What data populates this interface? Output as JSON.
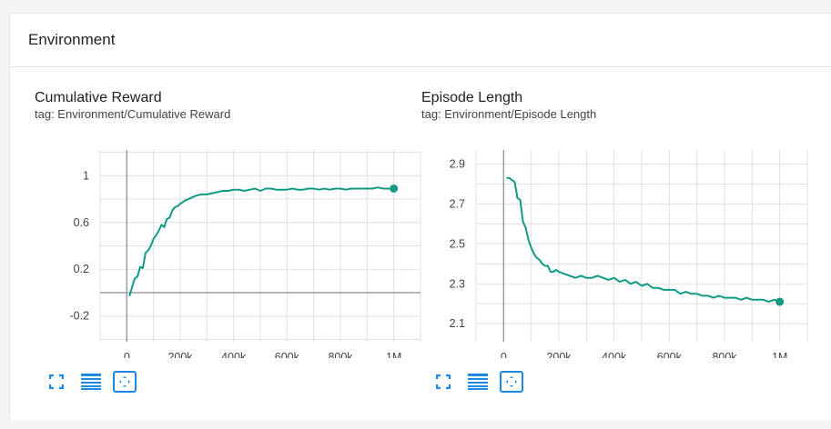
{
  "section": {
    "title": "Environment"
  },
  "colors": {
    "series": "#129a84",
    "grid": "#e0e0e0",
    "axis": "#9e9e9e",
    "icon": "#1e88e5"
  },
  "icons": {
    "fullscreen": "fullscreen-icon",
    "data_table": "data-table-icon",
    "fit_domain": "fit-domain-icon"
  },
  "charts": [
    {
      "title": "Cumulative Reward",
      "tag": "tag: Environment/Cumulative Reward"
    },
    {
      "title": "Episode Length",
      "tag": "tag: Environment/Episode Length"
    }
  ],
  "chart_data": [
    {
      "type": "line",
      "title": "Cumulative Reward",
      "subtitle": "tag: Environment/Cumulative Reward",
      "xlim": [
        -100000,
        1100000
      ],
      "ylim": [
        -0.42,
        1.22
      ],
      "xticks": [
        0,
        200000,
        400000,
        600000,
        800000,
        1000000
      ],
      "xtick_labels": [
        "0",
        "200k",
        "400k",
        "600k",
        "800k",
        "1M"
      ],
      "yticks": [
        -0.2,
        0.2,
        0.6,
        1
      ],
      "ytick_labels": [
        "-0.2",
        "0.2",
        "0.6",
        "1"
      ],
      "grid": true,
      "series": [
        {
          "x": [
            10000,
            20000,
            30000,
            40000,
            50000,
            60000,
            70000,
            80000,
            90000,
            100000,
            110000,
            120000,
            130000,
            140000,
            150000,
            160000,
            170000,
            180000,
            190000,
            200000,
            220000,
            240000,
            260000,
            280000,
            300000,
            320000,
            340000,
            360000,
            380000,
            400000,
            420000,
            440000,
            460000,
            480000,
            500000,
            520000,
            540000,
            560000,
            580000,
            600000,
            620000,
            640000,
            660000,
            680000,
            700000,
            720000,
            740000,
            760000,
            780000,
            800000,
            820000,
            840000,
            860000,
            880000,
            900000,
            920000,
            940000,
            960000,
            980000,
            1000000
          ],
          "y": [
            -0.03,
            0.05,
            0.12,
            0.14,
            0.22,
            0.21,
            0.34,
            0.36,
            0.4,
            0.46,
            0.49,
            0.53,
            0.58,
            0.56,
            0.63,
            0.64,
            0.7,
            0.73,
            0.74,
            0.76,
            0.79,
            0.81,
            0.83,
            0.84,
            0.84,
            0.85,
            0.86,
            0.87,
            0.87,
            0.88,
            0.88,
            0.87,
            0.88,
            0.89,
            0.87,
            0.89,
            0.89,
            0.88,
            0.88,
            0.88,
            0.89,
            0.88,
            0.88,
            0.89,
            0.89,
            0.88,
            0.89,
            0.88,
            0.89,
            0.89,
            0.88,
            0.89,
            0.89,
            0.89,
            0.89,
            0.89,
            0.9,
            0.89,
            0.89,
            0.89
          ]
        }
      ]
    },
    {
      "type": "line",
      "title": "Episode Length",
      "subtitle": "tag: Environment/Episode Length",
      "xlim": [
        -100000,
        1100000
      ],
      "ylim": [
        2.01,
        2.97
      ],
      "xticks": [
        0,
        200000,
        400000,
        600000,
        800000,
        1000000
      ],
      "xtick_labels": [
        "0",
        "200k",
        "400k",
        "600k",
        "800k",
        "1M"
      ],
      "yticks": [
        2.1,
        2.3,
        2.5,
        2.7,
        2.9
      ],
      "ytick_labels": [
        "2.1",
        "2.3",
        "2.5",
        "2.7",
        "2.9"
      ],
      "grid": true,
      "series": [
        {
          "x": [
            10000,
            20000,
            30000,
            40000,
            50000,
            60000,
            70000,
            80000,
            90000,
            100000,
            110000,
            120000,
            130000,
            140000,
            150000,
            160000,
            170000,
            180000,
            190000,
            200000,
            220000,
            240000,
            260000,
            280000,
            300000,
            320000,
            340000,
            360000,
            380000,
            400000,
            420000,
            440000,
            460000,
            480000,
            500000,
            520000,
            540000,
            560000,
            580000,
            600000,
            620000,
            640000,
            660000,
            680000,
            700000,
            720000,
            740000,
            760000,
            780000,
            800000,
            820000,
            840000,
            860000,
            880000,
            900000,
            920000,
            940000,
            960000,
            980000,
            1000000
          ],
          "y": [
            2.83,
            2.83,
            2.82,
            2.81,
            2.73,
            2.72,
            2.61,
            2.58,
            2.52,
            2.48,
            2.45,
            2.43,
            2.42,
            2.4,
            2.39,
            2.39,
            2.36,
            2.36,
            2.37,
            2.36,
            2.35,
            2.34,
            2.33,
            2.34,
            2.33,
            2.33,
            2.34,
            2.33,
            2.32,
            2.33,
            2.31,
            2.32,
            2.3,
            2.31,
            2.29,
            2.3,
            2.28,
            2.28,
            2.27,
            2.27,
            2.27,
            2.25,
            2.26,
            2.25,
            2.25,
            2.24,
            2.24,
            2.23,
            2.24,
            2.23,
            2.23,
            2.23,
            2.22,
            2.23,
            2.22,
            2.22,
            2.22,
            2.21,
            2.22,
            2.21
          ]
        }
      ]
    }
  ]
}
